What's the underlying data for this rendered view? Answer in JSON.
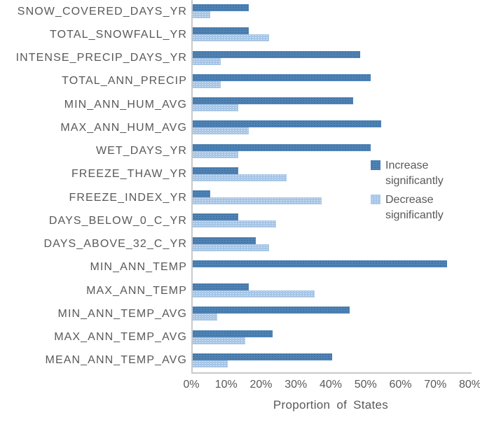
{
  "chart_data": {
    "type": "bar",
    "orientation": "horizontal",
    "title": "",
    "xlabel": "Proportion of States",
    "ylabel": "",
    "xlim": [
      0,
      80
    ],
    "x_ticks": [
      "0%",
      "10%",
      "20%",
      "30%",
      "40%",
      "50%",
      "60%",
      "70%",
      "80%"
    ],
    "grid": false,
    "legend_position": "inside-right",
    "categories": [
      "SNOW_COVERED_DAYS_YR",
      "TOTAL_SNOWFALL_YR",
      "INTENSE_PRECIP_DAYS_YR",
      "TOTAL_ANN_PRECIP",
      "MIN_ANN_HUM_AVG",
      "MAX_ANN_HUM_AVG",
      "WET_DAYS_YR",
      "FREEZE_THAW_YR",
      "FREEZE_INDEX_YR",
      "DAYS_BELOW_0_C_YR",
      "DAYS_ABOVE_32_C_YR",
      "MIN_ANN_TEMP",
      "MAX_ANN_TEMP",
      "MIN_ANN_TEMP_AVG",
      "MAX_ANN_TEMP_AVG",
      "MEAN_ANN_TEMP_AVG"
    ],
    "series": [
      {
        "name": "Increase significantly",
        "color": "#4e82b4",
        "values": [
          16,
          16,
          48,
          51,
          46,
          54,
          51,
          13,
          5,
          13,
          18,
          73,
          16,
          45,
          23,
          40
        ]
      },
      {
        "name": "Decrease significantly",
        "color": "#a7c5e5",
        "values": [
          5,
          22,
          8,
          8,
          13,
          16,
          13,
          27,
          37,
          24,
          22,
          0,
          35,
          7,
          15,
          10
        ]
      }
    ]
  },
  "colors": {
    "increase": "#4e82b4",
    "decrease": "#a7c5e5",
    "axis_line": "#c6c9cc",
    "text": "#595959",
    "background": "#ffffff"
  }
}
